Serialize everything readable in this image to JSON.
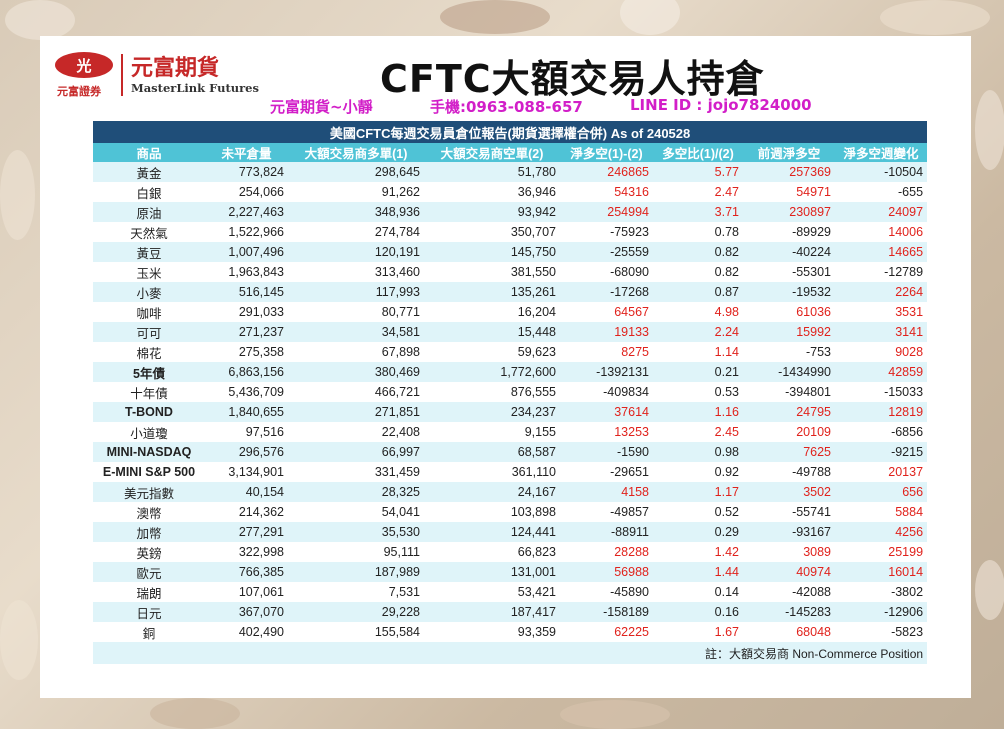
{
  "header": {
    "logo_mark": "光",
    "logo_sub": "元富證券",
    "logo_cn": "元富期貨",
    "logo_en": "MasterLink Futures",
    "title": "CFTC大額交易人持倉",
    "contact_name": "元富期貨~小靜",
    "contact_phone": "手機:0963-088-657",
    "contact_line": "LINE ID : jojo7824000"
  },
  "table": {
    "caption": "美國CFTC每週交易員倉位報告(期貨選擇權合併) As of  240528",
    "columns": [
      "商品",
      "未平倉量",
      "大額交易商多單(1)",
      "大額交易商空單(2)",
      "淨多空(1)-(2)",
      "多空比(1)/(2)",
      "前週淨多空",
      "淨多空週變化"
    ],
    "rows": [
      {
        "name": "黃金",
        "oi": "773,824",
        "long": "298,645",
        "short": "51,780",
        "net": "246865",
        "ratio": "5.77",
        "prev": "257369",
        "chg": "-10504"
      },
      {
        "name": "白銀",
        "oi": "254,066",
        "long": "91,262",
        "short": "36,946",
        "net": "54316",
        "ratio": "2.47",
        "prev": "54971",
        "chg": "-655"
      },
      {
        "name": "原油",
        "oi": "2,227,463",
        "long": "348,936",
        "short": "93,942",
        "net": "254994",
        "ratio": "3.71",
        "prev": "230897",
        "chg": "24097"
      },
      {
        "name": "天然氣",
        "oi": "1,522,966",
        "long": "274,784",
        "short": "350,707",
        "net": "-75923",
        "ratio": "0.78",
        "prev": "-89929",
        "chg": "14006"
      },
      {
        "name": "黃豆",
        "oi": "1,007,496",
        "long": "120,191",
        "short": "145,750",
        "net": "-25559",
        "ratio": "0.82",
        "prev": "-40224",
        "chg": "14665"
      },
      {
        "name": "玉米",
        "oi": "1,963,843",
        "long": "313,460",
        "short": "381,550",
        "net": "-68090",
        "ratio": "0.82",
        "prev": "-55301",
        "chg": "-12789"
      },
      {
        "name": "小麥",
        "oi": "516,145",
        "long": "117,993",
        "short": "135,261",
        "net": "-17268",
        "ratio": "0.87",
        "prev": "-19532",
        "chg": "2264"
      },
      {
        "name": "咖啡",
        "oi": "291,033",
        "long": "80,771",
        "short": "16,204",
        "net": "64567",
        "ratio": "4.98",
        "prev": "61036",
        "chg": "3531"
      },
      {
        "name": "可可",
        "oi": "271,237",
        "long": "34,581",
        "short": "15,448",
        "net": "19133",
        "ratio": "2.24",
        "prev": "15992",
        "chg": "3141"
      },
      {
        "name": "棉花",
        "oi": "275,358",
        "long": "67,898",
        "short": "59,623",
        "net": "8275",
        "ratio": "1.14",
        "prev": "-753",
        "chg": "9028"
      },
      {
        "name": "5年債",
        "oi": "6,863,156",
        "long": "380,469",
        "short": "1,772,600",
        "net": "-1392131",
        "ratio": "0.21",
        "prev": "-1434990",
        "chg": "42859",
        "bold": true
      },
      {
        "name": "十年債",
        "oi": "5,436,709",
        "long": "466,721",
        "short": "876,555",
        "net": "-409834",
        "ratio": "0.53",
        "prev": "-394801",
        "chg": "-15033"
      },
      {
        "name": "T-BOND",
        "oi": "1,840,655",
        "long": "271,851",
        "short": "234,237",
        "net": "37614",
        "ratio": "1.16",
        "prev": "24795",
        "chg": "12819",
        "bold": true
      },
      {
        "name": "小道瓊",
        "oi": "97,516",
        "long": "22,408",
        "short": "9,155",
        "net": "13253",
        "ratio": "2.45",
        "prev": "20109",
        "chg": "-6856"
      },
      {
        "name": "MINI-NASDAQ",
        "oi": "296,576",
        "long": "66,997",
        "short": "68,587",
        "net": "-1590",
        "ratio": "0.98",
        "prev": "7625",
        "chg": "-9215",
        "bold": true
      },
      {
        "name": "E-MINI S&P 500",
        "oi": "3,134,901",
        "long": "331,459",
        "short": "361,110",
        "net": "-29651",
        "ratio": "0.92",
        "prev": "-49788",
        "chg": "20137",
        "bold": true
      },
      {
        "name": "美元指數",
        "oi": "40,154",
        "long": "28,325",
        "short": "24,167",
        "net": "4158",
        "ratio": "1.17",
        "prev": "3502",
        "chg": "656"
      },
      {
        "name": "澳幣",
        "oi": "214,362",
        "long": "54,041",
        "short": "103,898",
        "net": "-49857",
        "ratio": "0.52",
        "prev": "-55741",
        "chg": "5884"
      },
      {
        "name": "加幣",
        "oi": "277,291",
        "long": "35,530",
        "short": "124,441",
        "net": "-88911",
        "ratio": "0.29",
        "prev": "-93167",
        "chg": "4256"
      },
      {
        "name": "英鎊",
        "oi": "322,998",
        "long": "95,111",
        "short": "66,823",
        "net": "28288",
        "ratio": "1.42",
        "prev": "3089",
        "chg": "25199"
      },
      {
        "name": "歐元",
        "oi": "766,385",
        "long": "187,989",
        "short": "131,001",
        "net": "56988",
        "ratio": "1.44",
        "prev": "40974",
        "chg": "16014"
      },
      {
        "name": "瑞朗",
        "oi": "107,061",
        "long": "7,531",
        "short": "53,421",
        "net": "-45890",
        "ratio": "0.14",
        "prev": "-42088",
        "chg": "-3802"
      },
      {
        "name": "日元",
        "oi": "367,070",
        "long": "29,228",
        "short": "187,417",
        "net": "-158189",
        "ratio": "0.16",
        "prev": "-145283",
        "chg": "-12906"
      },
      {
        "name": "銅",
        "oi": "402,490",
        "long": "155,584",
        "short": "93,359",
        "net": "62225",
        "ratio": "1.67",
        "prev": "68048",
        "chg": "-5823"
      }
    ],
    "note": "註：大額交易商 Non-Commerce Position"
  },
  "colors": {
    "caption_bg": "#1f4e79",
    "header_bg": "#4fc3d6",
    "stripe_bg": "#dff4f9",
    "positive": "#e0221c",
    "contact": "#d21ec8",
    "brand": "#c62828"
  }
}
